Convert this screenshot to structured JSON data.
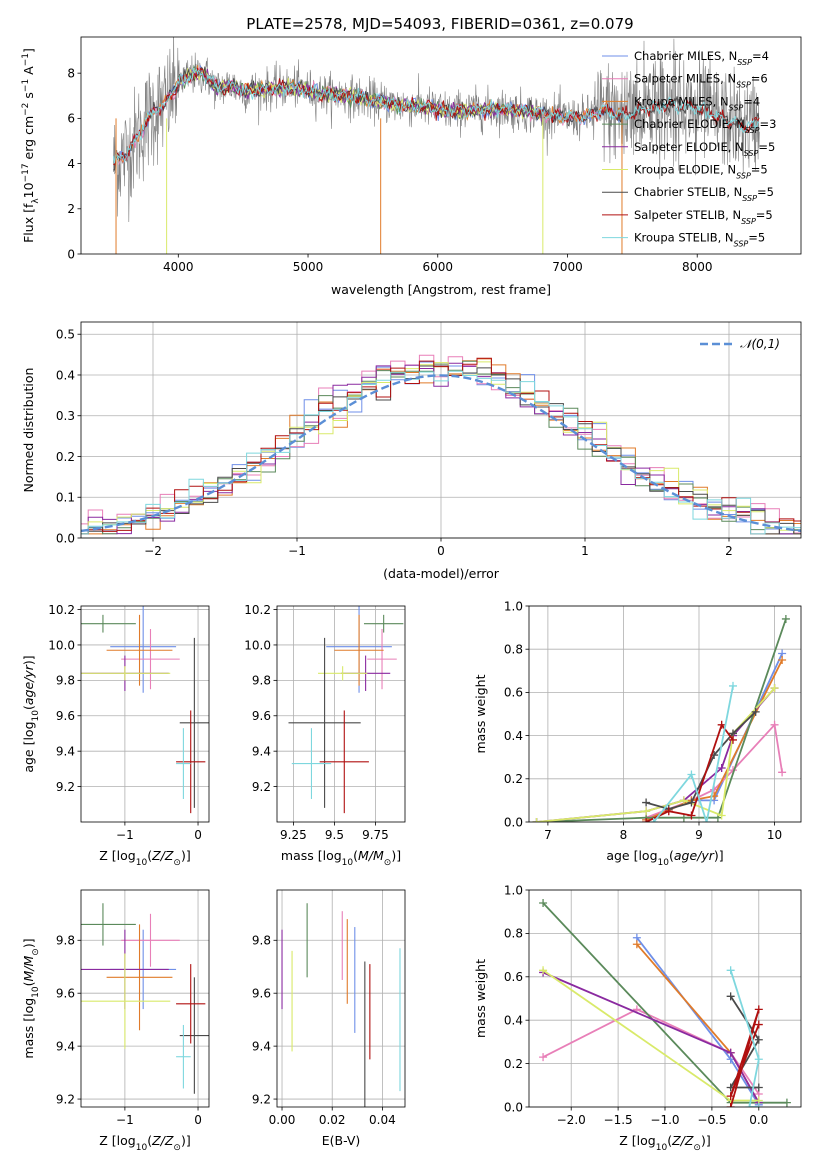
{
  "figure": {
    "title": "PLATE=2578, MJD=54093, FIBERID=0361, z=0.079"
  },
  "colors": {
    "Chabrier MILES": "#6f8fe8",
    "Salpeter MILES": "#e87fb8",
    "Kroupa MILES": "#e07b2a",
    "Chabrier ELODIE": "#5b8a5b",
    "Salpeter ELODIE": "#8a2aa0",
    "Kroupa ELODIE": "#d9ea6a",
    "Chabrier STELIB": "#4a4a4a",
    "Salpeter STELIB": "#b01010",
    "Kroupa STELIB": "#7ed7de",
    "data": "#808080",
    "gaussian": "#5b8fd6"
  },
  "chart_data": [
    {
      "id": "spectrum",
      "type": "line",
      "title": "PLATE=2578, MJD=54093, FIBERID=0361, z=0.079",
      "xlabel": "wavelength [Angstrom, rest frame]",
      "ylabel": "Flux [f_λ 10^-17 erg cm^-2 s^-1 A^-1]",
      "xlim": [
        3250,
        8800
      ],
      "ylim": [
        0,
        9.6
      ],
      "xticks": [
        4000,
        5000,
        6000,
        7000,
        8000
      ],
      "yticks": [
        0,
        2,
        4,
        6,
        8
      ],
      "grid": false,
      "legend_loc": "upper right",
      "legend": [
        {
          "name": "Chabrier MILES",
          "nssp": "4"
        },
        {
          "name": "Salpeter MILES",
          "nssp": "6"
        },
        {
          "name": "Kroupa MILES",
          "nssp": "4"
        },
        {
          "name": "Chabrier ELODIE",
          "nssp": "3"
        },
        {
          "name": "Salpeter ELODIE",
          "nssp": "5"
        },
        {
          "name": "Kroupa ELODIE",
          "nssp": "5"
        },
        {
          "name": "Chabrier STELIB",
          "nssp": "5"
        },
        {
          "name": "Salpeter STELIB",
          "nssp": "5"
        },
        {
          "name": "Kroupa STELIB",
          "nssp": "5"
        }
      ],
      "continuum": {
        "x": [
          3500,
          3600,
          3700,
          3800,
          3900,
          4000,
          4100,
          4200,
          4300,
          4400,
          4500,
          4700,
          4900,
          5100,
          5300,
          5500,
          5700,
          5900,
          6100,
          6300,
          6500,
          6700,
          6900,
          7100,
          7300,
          7400,
          7600,
          7800,
          8000,
          8200,
          8400,
          8480
        ],
        "y": [
          4.0,
          4.4,
          5.3,
          6.3,
          6.6,
          7.6,
          7.9,
          8.0,
          7.3,
          7.5,
          7.2,
          7.3,
          7.4,
          7.1,
          7.0,
          6.8,
          6.6,
          6.5,
          6.3,
          6.4,
          6.4,
          6.3,
          6.1,
          6.0,
          6.4,
          6.1,
          6.4,
          6.6,
          6.5,
          6.0,
          5.6,
          6.0
        ]
      }
    },
    {
      "id": "residuals",
      "type": "line",
      "xlabel": "(data-model)/error",
      "ylabel": "Normed distribution",
      "xlim": [
        -2.5,
        2.5
      ],
      "ylim": [
        0,
        0.53
      ],
      "xticks": [
        -2,
        -1,
        0,
        1,
        2
      ],
      "yticks": [
        0.0,
        0.1,
        0.2,
        0.3,
        0.4,
        0.5
      ],
      "grid": true,
      "legend_loc": "upper right",
      "legend_label": "𝒩(0,1)",
      "gaussian": {
        "mu": 0,
        "sigma": 1
      }
    },
    {
      "id": "age_vs_Z",
      "type": "scatter",
      "xlabel": "Z [log10(Z/Z⊙)]",
      "ylabel": "age [log10(age/yr)]",
      "xlim": [
        -1.6,
        0.15
      ],
      "ylim": [
        9.0,
        10.22
      ],
      "xticks": [
        -1,
        0
      ],
      "yticks": [
        9.2,
        9.4,
        9.6,
        9.8,
        10.0,
        10.2
      ],
      "grid": true,
      "points": [
        {
          "model": "Chabrier MILES",
          "x": -0.75,
          "xerr": 0.45,
          "y": 9.99,
          "yerr": 0.26
        },
        {
          "model": "Salpeter MILES",
          "x": -0.65,
          "xerr": 0.4,
          "y": 9.92,
          "yerr": 0.17
        },
        {
          "model": "Kroupa MILES",
          "x": -0.8,
          "xerr": 0.45,
          "y": 9.97,
          "yerr": 0.2
        },
        {
          "model": "Chabrier ELODIE",
          "x": -1.3,
          "xerr": 0.45,
          "y": 10.12,
          "yerr": 0.05
        },
        {
          "model": "Salpeter ELODIE",
          "x": -1.0,
          "xerr": 0.6,
          "y": 9.84,
          "yerr": 0.1
        },
        {
          "model": "Kroupa ELODIE",
          "x": -1.0,
          "xerr": 0.62,
          "y": 9.84,
          "yerr": 0.04
        },
        {
          "model": "Chabrier STELIB",
          "x": -0.05,
          "xerr": 0.2,
          "y": 9.56,
          "yerr": 0.48
        },
        {
          "model": "Salpeter STELIB",
          "x": -0.1,
          "xerr": 0.2,
          "y": 9.34,
          "yerr": 0.29
        },
        {
          "model": "Kroupa STELIB",
          "x": -0.2,
          "xerr": 0.1,
          "y": 9.33,
          "yerr": 0.2
        }
      ]
    },
    {
      "id": "age_vs_mass",
      "type": "scatter",
      "xlabel": "mass [log10(M/M⊙)]",
      "ylabel": "",
      "xlim": [
        9.15,
        9.93
      ],
      "ylim": [
        9.0,
        10.22
      ],
      "xticks": [
        9.25,
        9.5,
        9.75
      ],
      "yticks": [
        9.2,
        9.4,
        9.6,
        9.8,
        10.0,
        10.2
      ],
      "grid": true,
      "points": [
        {
          "model": "Chabrier MILES",
          "x": 9.65,
          "xerr": 0.2,
          "y": 9.99,
          "yerr": 0.26
        },
        {
          "model": "Salpeter MILES",
          "x": 9.79,
          "xerr": 0.09,
          "y": 9.92,
          "yerr": 0.17
        },
        {
          "model": "Kroupa MILES",
          "x": 9.65,
          "xerr": 0.15,
          "y": 9.97,
          "yerr": 0.2
        },
        {
          "model": "Chabrier ELODIE",
          "x": 9.8,
          "xerr": 0.12,
          "y": 10.12,
          "yerr": 0.05
        },
        {
          "model": "Salpeter ELODIE",
          "x": 9.69,
          "xerr": 0.15,
          "y": 9.84,
          "yerr": 0.1
        },
        {
          "model": "Kroupa ELODIE",
          "x": 9.55,
          "xerr": 0.15,
          "y": 9.84,
          "yerr": 0.04
        },
        {
          "model": "Chabrier STELIB",
          "x": 9.44,
          "xerr": 0.22,
          "y": 9.56,
          "yerr": 0.48
        },
        {
          "model": "Salpeter STELIB",
          "x": 9.56,
          "xerr": 0.15,
          "y": 9.34,
          "yerr": 0.29
        },
        {
          "model": "Kroupa STELIB",
          "x": 9.36,
          "xerr": 0.12,
          "y": 9.33,
          "yerr": 0.2
        }
      ]
    },
    {
      "id": "weight_vs_age",
      "type": "line",
      "xlabel": "age [log10(age/yr)]",
      "ylabel": "mass weight",
      "xlim": [
        6.75,
        10.35
      ],
      "ylim": [
        0,
        1.0
      ],
      "xticks": [
        7,
        8,
        9,
        10
      ],
      "yticks": [
        0.0,
        0.2,
        0.4,
        0.6,
        0.8,
        1.0
      ],
      "grid": true,
      "series": [
        {
          "model": "Chabrier MILES",
          "x": [
            8.3,
            8.9,
            9.2,
            10.1
          ],
          "y": [
            0.01,
            0.1,
            0.1,
            0.78
          ]
        },
        {
          "model": "Salpeter MILES",
          "x": [
            8.3,
            8.9,
            9.2,
            9.45,
            10.0,
            10.1
          ],
          "y": [
            0.02,
            0.1,
            0.15,
            0.24,
            0.45,
            0.23
          ]
        },
        {
          "model": "Kroupa MILES",
          "x": [
            8.3,
            8.9,
            9.2,
            10.1
          ],
          "y": [
            0.01,
            0.1,
            0.12,
            0.75
          ]
        },
        {
          "model": "Chabrier ELODIE",
          "x": [
            6.85,
            8.3,
            8.8,
            9.25,
            10.15
          ],
          "y": [
            0.0,
            0.02,
            0.02,
            0.02,
            0.94
          ]
        },
        {
          "model": "Salpeter ELODIE",
          "x": [
            6.85,
            8.3,
            8.8,
            9.3,
            9.45,
            10.0
          ],
          "y": [
            0.0,
            0.05,
            0.1,
            0.25,
            0.4,
            0.62
          ]
        },
        {
          "model": "Kroupa ELODIE",
          "x": [
            6.85,
            8.3,
            8.8,
            9.3,
            9.45,
            10.0
          ],
          "y": [
            0.0,
            0.05,
            0.1,
            0.03,
            0.41,
            0.62
          ]
        },
        {
          "model": "Chabrier STELIB",
          "x": [
            8.3,
            8.6,
            8.9,
            9.2,
            9.45,
            9.75
          ],
          "y": [
            0.09,
            0.06,
            0.09,
            0.31,
            0.41,
            0.51
          ]
        },
        {
          "model": "Salpeter STELIB",
          "x": [
            8.3,
            8.6,
            8.9,
            9.3,
            9.45
          ],
          "y": [
            0.0,
            0.05,
            0.03,
            0.45,
            0.38
          ]
        },
        {
          "model": "Kroupa STELIB",
          "x": [
            8.4,
            8.9,
            9.1,
            9.45
          ],
          "y": [
            0.0,
            0.22,
            0.0,
            0.63
          ]
        }
      ]
    },
    {
      "id": "mass_vs_Z",
      "type": "scatter",
      "xlabel": "Z [log10(Z/Z⊙)]",
      "ylabel": "mass [log10(M/M⊙)]",
      "xlim": [
        -1.6,
        0.15
      ],
      "ylim": [
        9.17,
        9.99
      ],
      "xticks": [
        -1,
        0
      ],
      "yticks": [
        9.2,
        9.4,
        9.6,
        9.8
      ],
      "grid": true,
      "points": [
        {
          "model": "Chabrier MILES",
          "x": -0.75,
          "xerr": 0.45,
          "y": 9.69,
          "yerr": 0.15
        },
        {
          "model": "Salpeter MILES",
          "x": -0.65,
          "xerr": 0.4,
          "y": 9.8,
          "yerr": 0.1
        },
        {
          "model": "Kroupa MILES",
          "x": -0.8,
          "xerr": 0.45,
          "y": 9.66,
          "yerr": 0.2
        },
        {
          "model": "Chabrier ELODIE",
          "x": -1.3,
          "xerr": 0.45,
          "y": 9.86,
          "yerr": 0.08
        },
        {
          "model": "Salpeter ELODIE",
          "x": -1.0,
          "xerr": 0.6,
          "y": 9.69,
          "yerr": 0.15
        },
        {
          "model": "Kroupa ELODIE",
          "x": -1.0,
          "xerr": 0.62,
          "y": 9.57,
          "yerr": 0.18
        },
        {
          "model": "Chabrier STELIB",
          "x": -0.05,
          "xerr": 0.2,
          "y": 9.44,
          "yerr": 0.22
        },
        {
          "model": "Salpeter STELIB",
          "x": -0.1,
          "xerr": 0.2,
          "y": 9.56,
          "yerr": 0.15
        },
        {
          "model": "Kroupa STELIB",
          "x": -0.2,
          "xerr": 0.1,
          "y": 9.36,
          "yerr": 0.12
        }
      ]
    },
    {
      "id": "mass_vs_ebv",
      "type": "scatter",
      "xlabel": "E(B-V)",
      "ylabel": "",
      "xlim": [
        -0.002,
        0.049
      ],
      "ylim": [
        9.17,
        9.99
      ],
      "xticks": [
        0.0,
        0.02,
        0.04
      ],
      "xticklabels": [
        "0.00",
        "0.02",
        "0.04"
      ],
      "yticks": [
        9.2,
        9.4,
        9.6,
        9.8
      ],
      "grid": true,
      "points": [
        {
          "model": "Chabrier MILES",
          "x": 0.029,
          "y": 9.65,
          "yerr": 0.2
        },
        {
          "model": "Salpeter MILES",
          "x": 0.024,
          "y": 9.78,
          "yerr": 0.13
        },
        {
          "model": "Kroupa MILES",
          "x": 0.026,
          "y": 9.72,
          "yerr": 0.16
        },
        {
          "model": "Chabrier ELODIE",
          "x": 0.01,
          "y": 9.8,
          "yerr": 0.14
        },
        {
          "model": "Salpeter ELODIE",
          "x": 0.0,
          "y": 9.69,
          "yerr": 0.15
        },
        {
          "model": "Kroupa ELODIE",
          "x": 0.004,
          "y": 9.57,
          "yerr": 0.19
        },
        {
          "model": "Chabrier STELIB",
          "x": 0.033,
          "y": 9.44,
          "yerr": 0.28
        },
        {
          "model": "Salpeter STELIB",
          "x": 0.035,
          "y": 9.53,
          "yerr": 0.18
        },
        {
          "model": "Kroupa STELIB",
          "x": 0.047,
          "y": 9.5,
          "yerr": 0.27
        }
      ]
    },
    {
      "id": "weight_vs_Z",
      "type": "line",
      "xlabel": "Z [log10(Z/Z⊙)]",
      "ylabel": "mass weight",
      "xlim": [
        -2.45,
        0.45
      ],
      "ylim": [
        0,
        1.0
      ],
      "xticks": [
        -2.0,
        -1.5,
        -1.0,
        -0.5,
        0.0
      ],
      "xticklabels": [
        "−2.0",
        "−1.5",
        "−1.0",
        "−0.5",
        "0.0"
      ],
      "yticks": [
        0.0,
        0.2,
        0.4,
        0.6,
        0.8,
        1.0
      ],
      "grid": true,
      "series": [
        {
          "model": "Chabrier MILES",
          "x": [
            -1.3,
            -0.3,
            0.0
          ],
          "y": [
            0.78,
            0.22,
            0.01
          ]
        },
        {
          "model": "Salpeter MILES",
          "x": [
            -2.3,
            -1.3,
            -0.3,
            0.0
          ],
          "y": [
            0.23,
            0.45,
            0.25,
            0.06
          ]
        },
        {
          "model": "Kroupa MILES",
          "x": [
            -1.3,
            -0.3,
            0.0
          ],
          "y": [
            0.75,
            0.25,
            0.02
          ]
        },
        {
          "model": "Chabrier ELODIE",
          "x": [
            -2.3,
            -0.3,
            0.3
          ],
          "y": [
            0.94,
            0.02,
            0.02
          ]
        },
        {
          "model": "Salpeter ELODIE",
          "x": [
            -2.3,
            -0.3,
            0.0
          ],
          "y": [
            0.62,
            0.25,
            0.02
          ]
        },
        {
          "model": "Kroupa ELODIE",
          "x": [
            -2.3,
            -0.3,
            0.0
          ],
          "y": [
            0.63,
            0.03,
            0.03
          ]
        },
        {
          "model": "Chabrier STELIB",
          "x": [
            -0.3,
            0.0,
            -0.3,
            0.0
          ],
          "y": [
            0.51,
            0.31,
            0.09,
            0.09
          ]
        },
        {
          "model": "Salpeter STELIB",
          "x": [
            -0.3,
            0.0,
            -0.3,
            0.0
          ],
          "y": [
            0.0,
            0.45,
            0.05,
            0.38
          ]
        },
        {
          "model": "Kroupa STELIB",
          "x": [
            -0.3,
            0.0,
            -0.1,
            0.0
          ],
          "y": [
            0.63,
            0.22,
            0.0,
            0.0
          ]
        }
      ]
    }
  ]
}
